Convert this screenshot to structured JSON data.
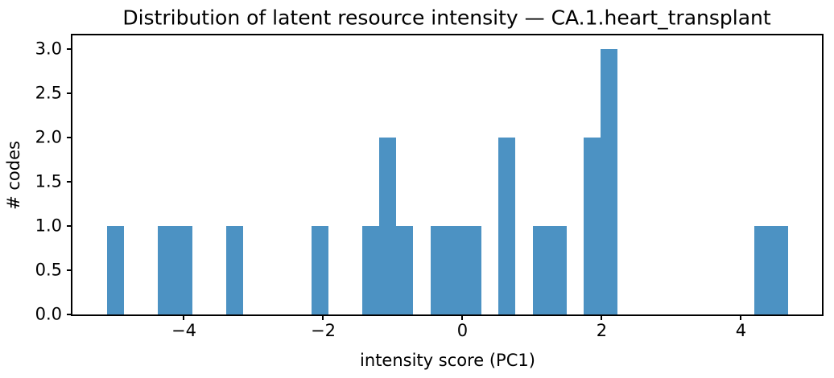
{
  "chart_data": {
    "type": "bar",
    "subtype": "histogram",
    "title": "Distribution of latent resource intensity — CA.1.heart_transplant",
    "xlabel": "intensity score (PC1)",
    "ylabel": "# codes",
    "bar_color": "#4C92C3",
    "axis_color": "#000000",
    "background_color": "#ffffff",
    "grid": false,
    "legend": false,
    "xlim": [
      -5.601,
      5.162
    ],
    "ylim": [
      0,
      3.155
    ],
    "total_count": 23,
    "bin_edges": [
      -5.107,
      -4.862,
      -4.618,
      -4.373,
      -4.129,
      -3.884,
      -3.64,
      -3.395,
      -3.15,
      -2.906,
      -2.661,
      -2.417,
      -2.172,
      -1.928,
      -1.683,
      -1.439,
      -1.194,
      -0.95,
      -0.705,
      -0.46,
      -0.216,
      0.029,
      0.273,
      0.518,
      0.762,
      1.007,
      1.251,
      1.496,
      1.74,
      1.985,
      2.229,
      2.474,
      2.719,
      2.963,
      3.208,
      3.452,
      3.697,
      3.941,
      4.186,
      4.43,
      4.675
    ],
    "counts": [
      1,
      0,
      0,
      1,
      1,
      0,
      0,
      1,
      0,
      0,
      0,
      0,
      1,
      0,
      0,
      1,
      2,
      1,
      0,
      1,
      1,
      1,
      0,
      2,
      0,
      1,
      1,
      0,
      2,
      3,
      0,
      0,
      0,
      0,
      0,
      0,
      0,
      0,
      1,
      1
    ],
    "x_ticks": [
      {
        "value": -4,
        "label": "−4"
      },
      {
        "value": -2,
        "label": "−2"
      },
      {
        "value": 0,
        "label": "0"
      },
      {
        "value": 2,
        "label": "2"
      },
      {
        "value": 4,
        "label": "4"
      }
    ],
    "y_ticks": [
      {
        "value": 0,
        "label": "0.0"
      },
      {
        "value": 0.5,
        "label": "0.5"
      },
      {
        "value": 1,
        "label": "1.0"
      },
      {
        "value": 1.5,
        "label": "1.5"
      },
      {
        "value": 2,
        "label": "2.0"
      },
      {
        "value": 2.5,
        "label": "2.5"
      },
      {
        "value": 3,
        "label": "3.0"
      }
    ]
  }
}
